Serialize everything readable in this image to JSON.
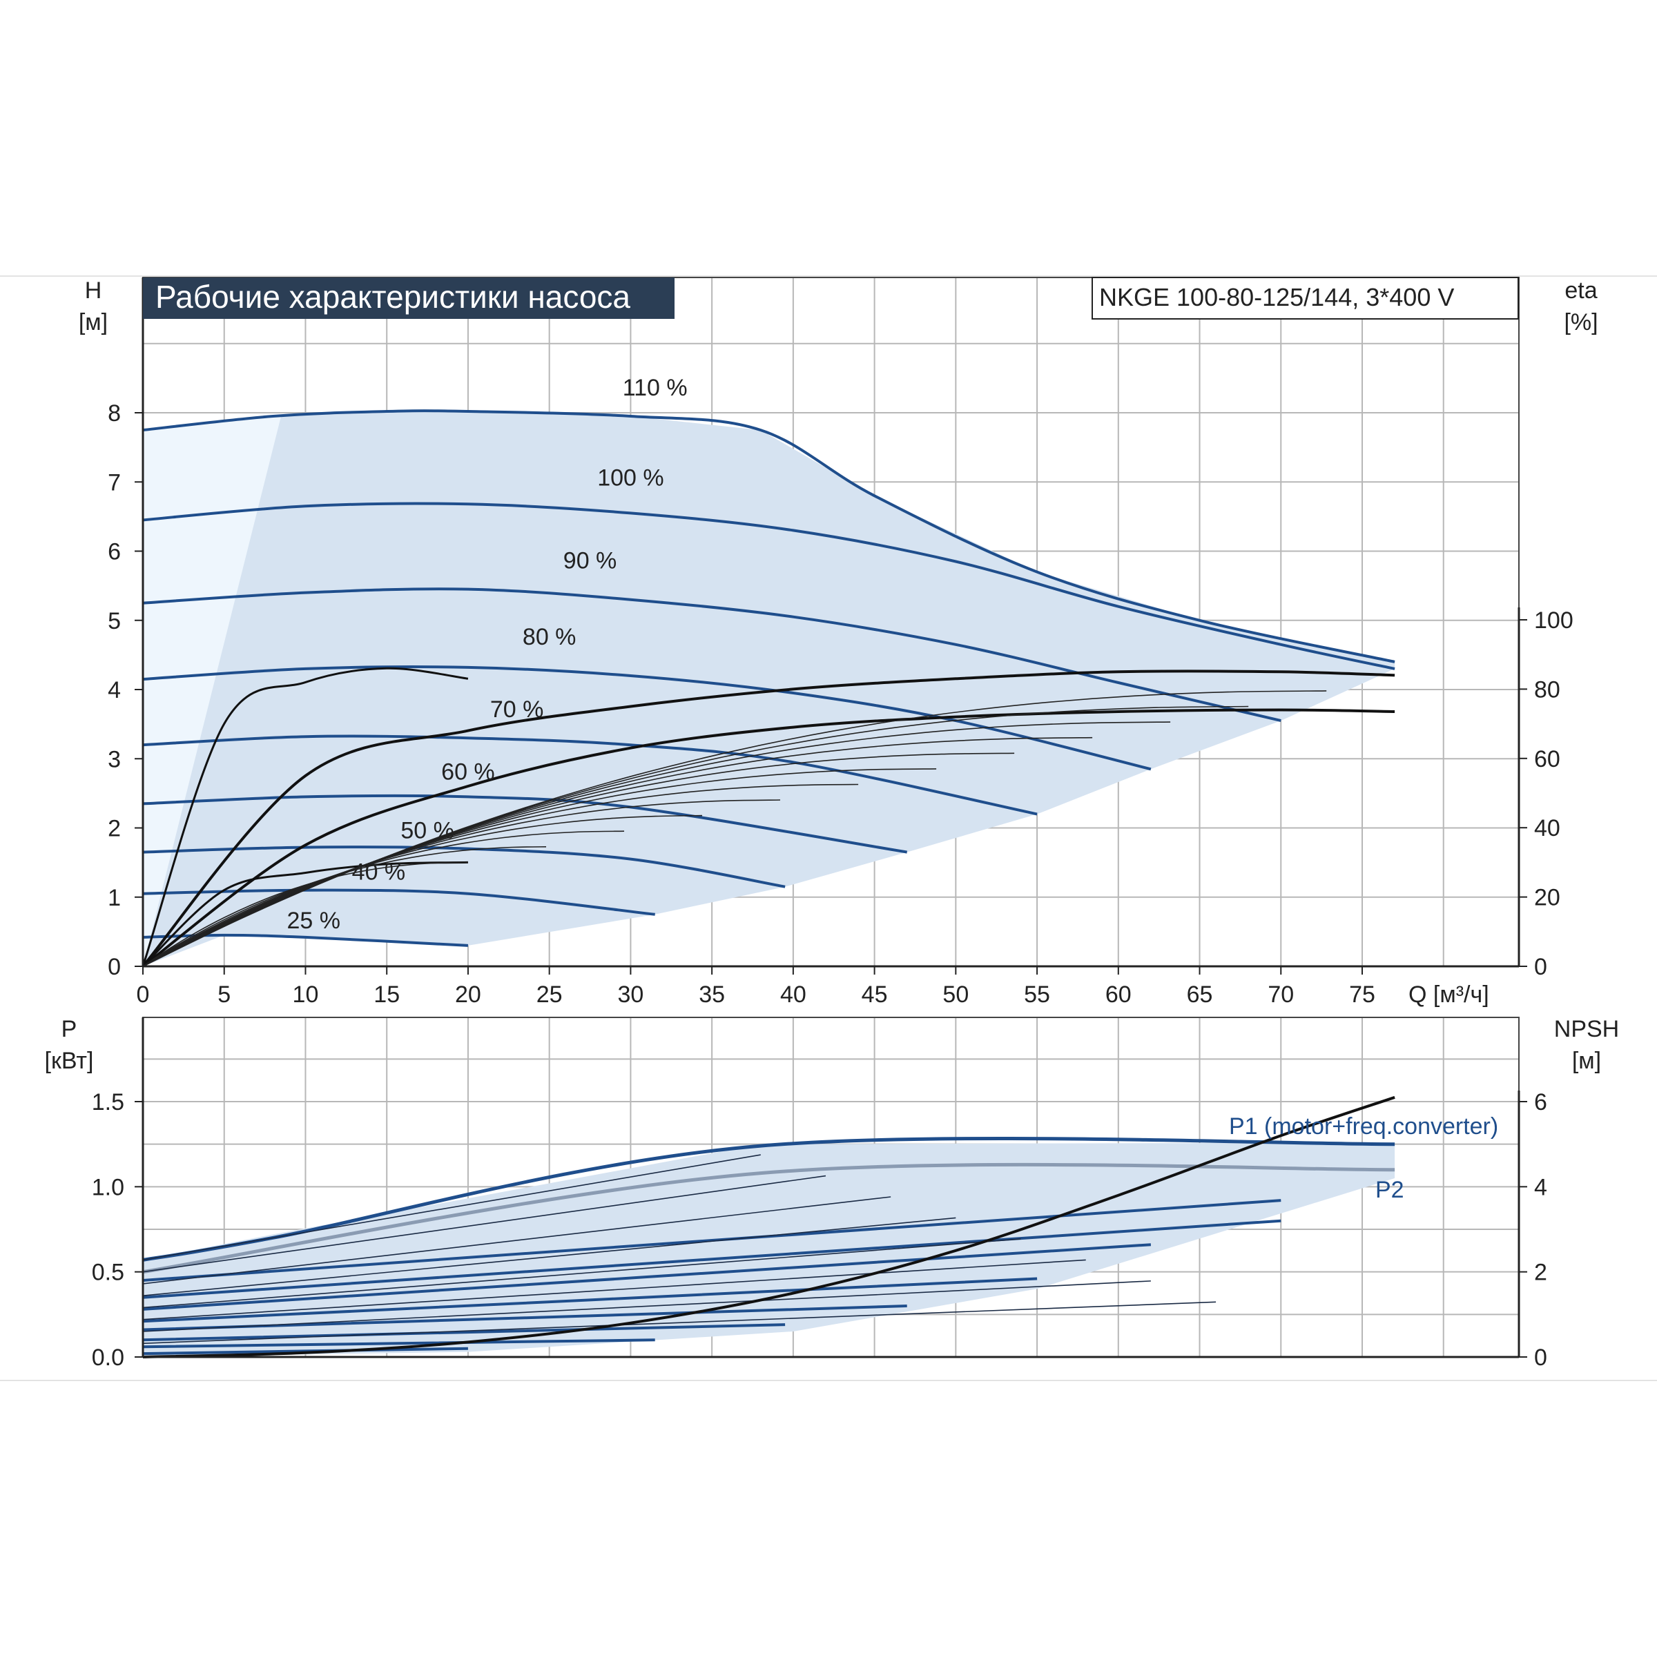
{
  "chart_data": [
    {
      "type": "line",
      "title": "Рабочие характеристики насоса",
      "model_label": "NKGE 100-80-125/144, 3*400 V",
      "y_axis": {
        "label": "H",
        "unit": "[м]",
        "ticks": [
          "0",
          "1",
          "2",
          "3",
          "4",
          "5",
          "6",
          "7",
          "8"
        ],
        "ylim": [
          0,
          10
        ]
      },
      "y2_axis": {
        "label": "eta",
        "unit": "[%]",
        "ticks": [
          "0",
          "20",
          "40",
          "60",
          "80",
          "100"
        ],
        "ylim": [
          0,
          100
        ]
      },
      "x_axis": {
        "label": "Q [м³/ч]",
        "ticks": [
          "0",
          "5",
          "10",
          "15",
          "20",
          "25",
          "30",
          "35",
          "40",
          "45",
          "50",
          "55",
          "60",
          "65",
          "70",
          "75"
        ],
        "xlim": [
          0,
          85
        ]
      },
      "grid": true,
      "colors": {
        "curve": "#1f4e8c",
        "area": "#d6e3f1",
        "area_light": "#eef6fd",
        "eta": "#111111"
      },
      "series": [
        {
          "name": "110 %",
          "x": [
            0,
            8,
            15,
            20,
            30,
            38,
            45,
            55,
            65,
            77
          ],
          "y": [
            7.75,
            7.95,
            8.02,
            8.02,
            7.95,
            7.75,
            6.8,
            5.7,
            5.0,
            4.4
          ]
        },
        {
          "name": "100 %",
          "x": [
            0,
            10,
            20,
            30,
            40,
            50,
            60,
            70,
            77
          ],
          "y": [
            6.45,
            6.65,
            6.68,
            6.55,
            6.3,
            5.85,
            5.2,
            4.65,
            4.3
          ]
        },
        {
          "name": "90 %",
          "x": [
            0,
            10,
            20,
            30,
            40,
            50,
            60,
            70
          ],
          "y": [
            5.25,
            5.4,
            5.45,
            5.3,
            5.05,
            4.65,
            4.1,
            3.55
          ]
        },
        {
          "name": "80 %",
          "x": [
            0,
            10,
            20,
            30,
            40,
            50,
            62
          ],
          "y": [
            4.15,
            4.3,
            4.32,
            4.2,
            3.95,
            3.55,
            2.85
          ]
        },
        {
          "name": "70 %",
          "x": [
            0,
            10,
            20,
            30,
            40,
            55
          ],
          "y": [
            3.2,
            3.32,
            3.3,
            3.2,
            2.95,
            2.2
          ]
        },
        {
          "name": "60 %",
          "x": [
            0,
            10,
            20,
            30,
            47
          ],
          "y": [
            2.35,
            2.45,
            2.45,
            2.3,
            1.65
          ]
        },
        {
          "name": "50 %",
          "x": [
            0,
            10,
            20,
            30,
            39.5
          ],
          "y": [
            1.65,
            1.72,
            1.7,
            1.55,
            1.15
          ]
        },
        {
          "name": "40 %",
          "x": [
            0,
            10,
            20,
            31.5
          ],
          "y": [
            1.05,
            1.1,
            1.05,
            0.75
          ]
        },
        {
          "name": "25 %",
          "x": [
            0,
            5,
            10,
            20
          ],
          "y": [
            0.42,
            0.45,
            0.42,
            0.3
          ]
        }
      ],
      "eta_curves": [
        {
          "x": [
            0,
            10,
            20,
            30,
            40,
            50,
            60,
            70,
            77
          ],
          "y": [
            0,
            55,
            68,
            75,
            80,
            83,
            85,
            85,
            84
          ]
        },
        {
          "x": [
            0,
            10,
            20,
            30,
            40,
            50,
            60,
            70,
            77
          ],
          "y": [
            0,
            35,
            52,
            63,
            69,
            72,
            73.5,
            74,
            73.5
          ]
        },
        {
          "x": [
            0,
            5,
            10,
            15,
            20
          ],
          "y": [
            0,
            22,
            27,
            29.5,
            30
          ]
        },
        {
          "x": [
            0,
            5,
            10,
            15,
            20
          ],
          "y": [
            0,
            70,
            82,
            86,
            83
          ]
        }
      ],
      "annotations": [
        "110 %",
        "100 %",
        "90 %",
        "80 %",
        "70 %",
        "60 %",
        "50 %",
        "40 %",
        "25 %"
      ]
    },
    {
      "type": "line",
      "y_axis": {
        "label": "P",
        "unit": "[кВт]",
        "ticks": [
          "0.0",
          "0.5",
          "1.0",
          "1.5"
        ],
        "ylim": [
          0,
          2.0
        ]
      },
      "y2_axis": {
        "label": "NPSH",
        "unit": "[м]",
        "ticks": [
          "0",
          "2",
          "4",
          "6"
        ],
        "ylim": [
          0,
          8
        ]
      },
      "x_axis": {
        "xlim": [
          0,
          85
        ]
      },
      "grid": true,
      "series": [
        {
          "name": "P1 (motor+freq.converter)",
          "x": [
            0,
            8,
            38,
            77
          ],
          "y": [
            0.57,
            0.7,
            1.24,
            1.25
          ]
        },
        {
          "name": "P2",
          "x": [
            0,
            38,
            77
          ],
          "y": [
            0.5,
            1.08,
            1.1
          ]
        },
        {
          "name": "",
          "x": [
            0,
            70
          ],
          "y": [
            0.45,
            0.92
          ]
        },
        {
          "name": "",
          "x": [
            0,
            70
          ],
          "y": [
            0.35,
            0.8
          ]
        },
        {
          "name": "",
          "x": [
            0,
            62
          ],
          "y": [
            0.28,
            0.66
          ]
        },
        {
          "name": "",
          "x": [
            0,
            55
          ],
          "y": [
            0.21,
            0.46
          ]
        },
        {
          "name": "",
          "x": [
            0,
            47
          ],
          "y": [
            0.16,
            0.3
          ]
        },
        {
          "name": "",
          "x": [
            0,
            39.5
          ],
          "y": [
            0.1,
            0.19
          ]
        },
        {
          "name": "",
          "x": [
            0,
            31.5
          ],
          "y": [
            0.06,
            0.1
          ]
        },
        {
          "name": "",
          "x": [
            0,
            20
          ],
          "y": [
            0.02,
            0.05
          ]
        }
      ],
      "npsh": {
        "x": [
          0,
          10,
          20,
          30,
          40,
          50,
          60,
          70,
          77
        ],
        "y": [
          0,
          0.1,
          0.35,
          0.8,
          1.5,
          2.5,
          3.8,
          5.2,
          6.1
        ]
      }
    }
  ]
}
